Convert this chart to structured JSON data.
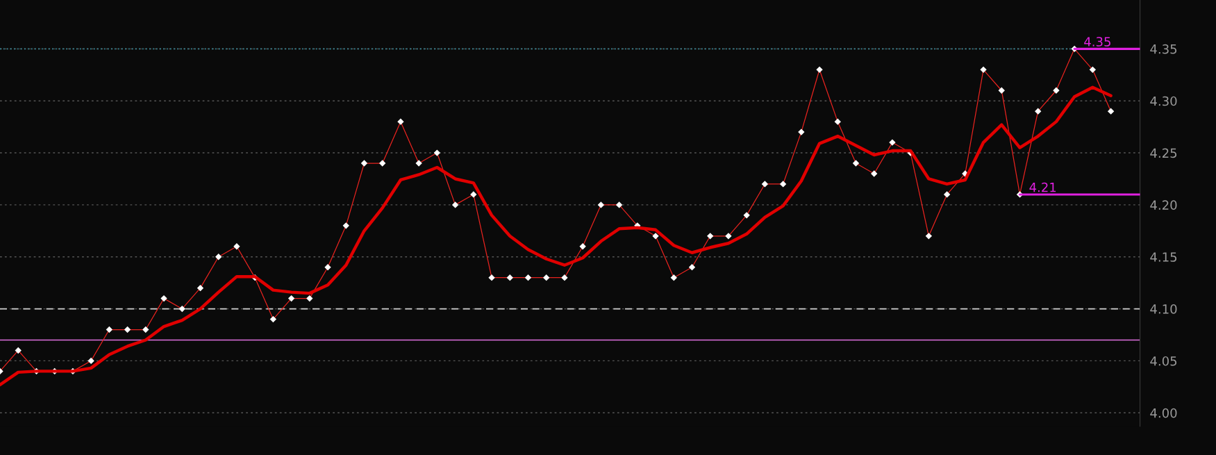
{
  "chart_data": {
    "type": "line",
    "categories": [
      null,
      null,
      null,
      null,
      null,
      null,
      null,
      null,
      null,
      null,
      null,
      null,
      null,
      null,
      null,
      null,
      null,
      null,
      null,
      null,
      null,
      null,
      null,
      null,
      null,
      null,
      null,
      null,
      null,
      null,
      null,
      null,
      null,
      null,
      null,
      null,
      null,
      null,
      null,
      null,
      null,
      null,
      null,
      null,
      null,
      null,
      null,
      null,
      null,
      null,
      null,
      null,
      null,
      null,
      null,
      null,
      null,
      null,
      null,
      null,
      null,
      null
    ],
    "series": [
      {
        "color": "#e8231f",
        "marker": "diamond",
        "values": [
          4.04,
          4.06,
          4.04,
          4.04,
          4.04,
          4.05,
          4.08,
          4.08,
          4.08,
          4.11,
          4.1,
          4.12,
          4.15,
          4.16,
          4.13,
          4.09,
          4.11,
          4.11,
          4.14,
          4.18,
          4.24,
          4.24,
          4.28,
          4.24,
          4.25,
          4.2,
          4.21,
          4.13,
          4.13,
          4.13,
          4.13,
          4.13,
          4.16,
          4.2,
          4.2,
          4.18,
          4.17,
          4.13,
          4.14,
          4.17,
          4.17,
          4.19,
          4.22,
          4.22,
          4.27,
          4.33,
          4.28,
          4.24,
          4.23,
          4.26,
          4.25,
          4.17,
          4.21,
          4.23,
          4.33,
          4.31,
          4.21,
          4.29,
          4.31,
          4.35,
          4.33,
          4.29
        ]
      },
      {
        "color": "#e00000",
        "marker": "none",
        "values": [
          4.027,
          4.039,
          4.04,
          4.04,
          4.04,
          4.043,
          4.056,
          4.064,
          4.07,
          4.083,
          4.089,
          4.1,
          4.116,
          4.131,
          4.131,
          4.118,
          4.116,
          4.115,
          4.123,
          4.142,
          4.175,
          4.197,
          4.224,
          4.229,
          4.236,
          4.225,
          4.221,
          4.19,
          4.17,
          4.157,
          4.148,
          4.142,
          4.149,
          4.165,
          4.177,
          4.178,
          4.176,
          4.161,
          4.154,
          4.159,
          4.163,
          4.172,
          4.188,
          4.199,
          4.223,
          4.259,
          4.266,
          4.257,
          4.248,
          4.252,
          4.252,
          4.225,
          4.22,
          4.224,
          4.26,
          4.277,
          4.255,
          4.266,
          4.28,
          4.304,
          4.313,
          4.305
        ]
      }
    ],
    "ylim": [
      3.987,
      4.397
    ],
    "yticks": [
      {
        "value": 4.0,
        "label": "4.00"
      },
      {
        "value": 4.05,
        "label": "4.05"
      },
      {
        "value": 4.1,
        "label": "4.10"
      },
      {
        "value": 4.15,
        "label": "4.15"
      },
      {
        "value": 4.2,
        "label": "4.20"
      },
      {
        "value": 4.25,
        "label": "4.25"
      },
      {
        "value": 4.3,
        "label": "4.30"
      },
      {
        "value": 4.35,
        "label": "4.35"
      }
    ],
    "grid": "y",
    "tick_labels": "y",
    "ref_lines": [
      {
        "axis": "y",
        "value": 4.35,
        "color": "#3a8fa0",
        "line_style": "dotted"
      },
      {
        "axis": "y",
        "value": 4.1,
        "color": "#d0d0d0",
        "line_style": "dashed"
      },
      {
        "axis": "y",
        "value": 4.07,
        "color": "#e070e0",
        "line_style": "solid"
      },
      {
        "axis": "y",
        "value": 4.35,
        "label": "4.35",
        "color": "#e020e0",
        "line_style": "solid"
      },
      {
        "axis": "y",
        "value": 4.21,
        "label": "4.21",
        "color": "#e020e0",
        "line_style": "solid"
      }
    ]
  }
}
